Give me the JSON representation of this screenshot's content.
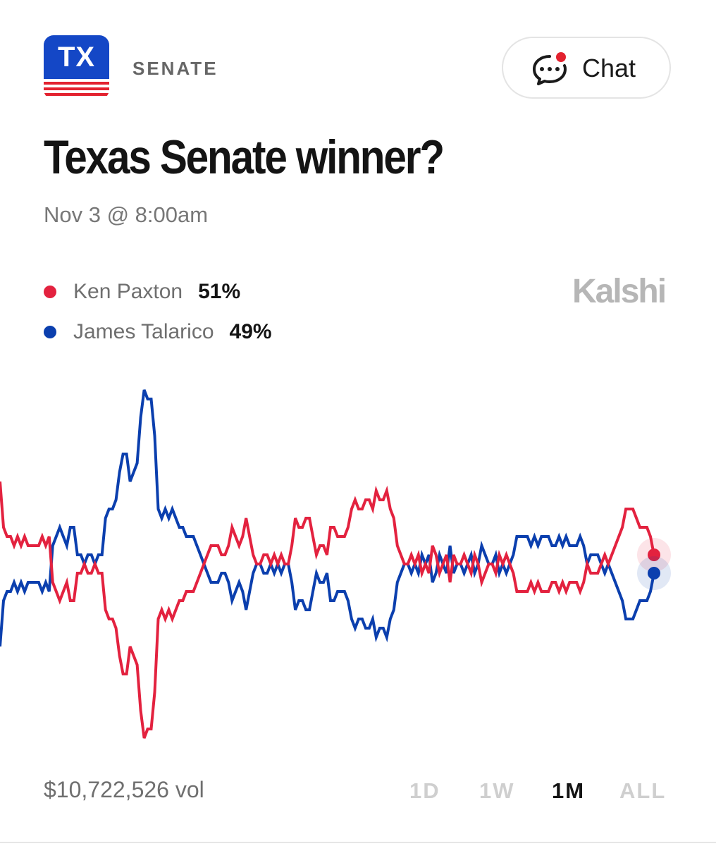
{
  "header": {
    "badge_text": "TX",
    "section_label": "SENATE",
    "chat_label": "Chat"
  },
  "market": {
    "title": "Texas Senate winner?",
    "date": "Nov 3 @ 8:00am",
    "brand": "Kalshi"
  },
  "colors": {
    "paxton": "#e3223f",
    "talarico": "#0b3fae",
    "badge_blue": "#1447c6",
    "badge_red": "#e3222f"
  },
  "chart_data": {
    "type": "line",
    "title": "",
    "xlabel": "",
    "ylabel": "",
    "x_range": "1M",
    "x": [
      0,
      1,
      2,
      3,
      4,
      5,
      6,
      7,
      8,
      9,
      10,
      11,
      12,
      13,
      14,
      15,
      16,
      17,
      18,
      19,
      20,
      21,
      22,
      23,
      24,
      25,
      26,
      27,
      28,
      29,
      30,
      31,
      32,
      33,
      34,
      35,
      36,
      37,
      38,
      39,
      40,
      41,
      42,
      43,
      44,
      45,
      46,
      47,
      48,
      49,
      50,
      51,
      52,
      53,
      54,
      55,
      56,
      57,
      58,
      59,
      60,
      61,
      62,
      63,
      64,
      65,
      66,
      67,
      68,
      69,
      70,
      71,
      72,
      73,
      74,
      75,
      76,
      77,
      78,
      79,
      80,
      81,
      82,
      83,
      84,
      85,
      86,
      87,
      88,
      89,
      90,
      91,
      92,
      93,
      94,
      95,
      96,
      97,
      98,
      99,
      100,
      101,
      102,
      103,
      104,
      105,
      106,
      107,
      108,
      109,
      110,
      111,
      112,
      113,
      114,
      115,
      116,
      117,
      118,
      119,
      120,
      121,
      122,
      123,
      124,
      125,
      126,
      127,
      128,
      129,
      130,
      131,
      132,
      133,
      134,
      135,
      136,
      137,
      138,
      139,
      140,
      141,
      142,
      143,
      144,
      145,
      146,
      147,
      148,
      149,
      150,
      151,
      152,
      153,
      154,
      155,
      156,
      157,
      158,
      159,
      160,
      161,
      162,
      163,
      164,
      165,
      166,
      167,
      168,
      169,
      170,
      171,
      172,
      173,
      174,
      175,
      176,
      177,
      178,
      179,
      180,
      181,
      182,
      183,
      184,
      185,
      186
    ],
    "series": [
      {
        "name": "Ken Paxton",
        "current_label": "51%",
        "values": [
          59,
          54,
          53,
          53,
          52,
          53,
          52,
          53,
          52,
          52,
          52,
          52,
          53,
          52,
          53,
          48,
          47,
          46,
          47,
          48,
          46,
          46,
          49,
          49,
          50,
          49,
          49,
          50,
          49,
          49,
          45,
          44,
          44,
          43,
          40,
          38,
          38,
          41,
          40,
          39,
          34,
          31,
          32,
          32,
          36,
          44,
          45,
          44,
          45,
          44,
          45,
          46,
          46,
          47,
          47,
          47,
          48,
          49,
          50,
          51,
          52,
          52,
          52,
          51,
          51,
          52,
          54,
          53,
          52,
          53,
          55,
          53,
          51,
          50,
          50,
          51,
          51,
          50,
          51,
          50,
          51,
          50,
          50,
          52,
          55,
          54,
          54,
          55,
          55,
          53,
          51,
          52,
          52,
          51,
          54,
          54,
          53,
          53,
          53,
          54,
          56,
          57,
          56,
          56,
          57,
          57,
          56,
          58,
          57,
          57,
          58,
          56,
          55,
          52,
          51,
          50,
          50,
          51,
          50,
          51,
          49,
          50,
          49,
          52,
          51,
          49,
          50,
          51,
          48,
          51,
          50,
          50,
          51,
          50,
          49,
          51,
          50,
          48,
          49,
          50,
          50,
          49,
          51,
          50,
          51,
          50,
          49,
          47,
          47,
          47,
          47,
          48,
          47,
          48,
          47,
          47,
          47,
          48,
          48,
          47,
          48,
          47,
          48,
          48,
          48,
          47,
          48,
          50,
          49,
          49,
          49,
          50,
          51,
          50,
          51,
          52,
          53,
          54,
          56,
          56,
          56,
          55,
          54,
          54,
          54,
          53,
          51
        ]
      },
      {
        "name": "James Talarico",
        "current_label": "49%",
        "values": [
          41,
          46,
          47,
          47,
          48,
          47,
          48,
          47,
          48,
          48,
          48,
          48,
          47,
          48,
          47,
          52,
          53,
          54,
          53,
          52,
          54,
          54,
          51,
          51,
          50,
          51,
          51,
          50,
          51,
          51,
          55,
          56,
          56,
          57,
          60,
          62,
          62,
          59,
          60,
          61,
          66,
          69,
          68,
          68,
          64,
          56,
          55,
          56,
          55,
          56,
          55,
          54,
          54,
          53,
          53,
          53,
          52,
          51,
          50,
          49,
          48,
          48,
          48,
          49,
          49,
          48,
          46,
          47,
          48,
          47,
          45,
          47,
          49,
          50,
          50,
          49,
          49,
          50,
          49,
          50,
          49,
          50,
          50,
          48,
          45,
          46,
          46,
          45,
          45,
          47,
          49,
          48,
          48,
          49,
          46,
          46,
          47,
          47,
          47,
          46,
          44,
          43,
          44,
          44,
          43,
          43,
          44,
          42,
          43,
          43,
          42,
          44,
          45,
          48,
          49,
          50,
          50,
          49,
          50,
          49,
          51,
          50,
          51,
          48,
          49,
          51,
          50,
          49,
          52,
          49,
          50,
          50,
          49,
          50,
          51,
          49,
          50,
          52,
          51,
          50,
          50,
          51,
          49,
          50,
          49,
          50,
          51,
          53,
          53,
          53,
          53,
          52,
          53,
          52,
          53,
          53,
          53,
          52,
          52,
          53,
          52,
          53,
          52,
          52,
          52,
          53,
          52,
          50,
          51,
          51,
          51,
          50,
          49,
          50,
          49,
          48,
          47,
          46,
          44,
          44,
          44,
          45,
          46,
          46,
          46,
          47,
          49
        ]
      }
    ],
    "ylim": [
      30,
      70
    ],
    "grid": false,
    "legend": "top-left"
  },
  "footer": {
    "volume": "$10,722,526 vol",
    "ranges": [
      "1D",
      "1W",
      "1M",
      "ALL"
    ],
    "active_range": "1M"
  }
}
